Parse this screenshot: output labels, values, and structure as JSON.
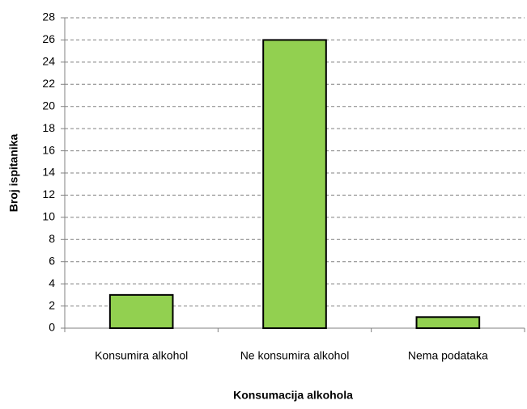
{
  "chart_data": {
    "type": "bar",
    "categories": [
      "Konsumira alkohol",
      "Ne konsumira alkohol",
      "Nema podataka"
    ],
    "values": [
      3,
      26,
      1
    ],
    "color": "#92d050",
    "ylim": [
      0,
      28
    ],
    "yticks": [
      0,
      2,
      4,
      6,
      8,
      10,
      12,
      14,
      16,
      18,
      20,
      22,
      24,
      26,
      28
    ],
    "xlabel": "Konsumacija alkohola",
    "ylabel": "Broj ispitanika",
    "grid": true
  }
}
